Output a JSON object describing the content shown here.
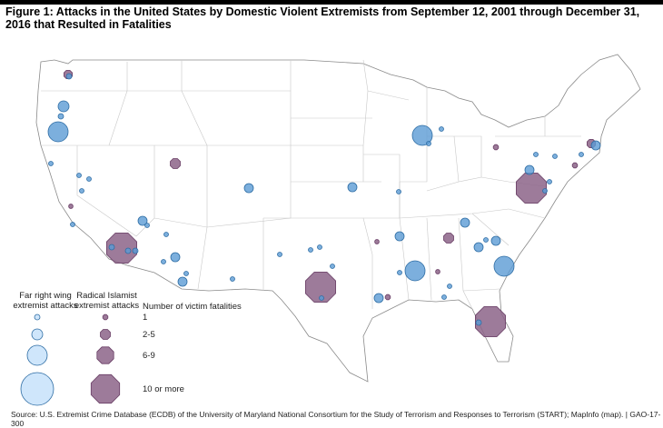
{
  "figure": {
    "title": "Figure 1: Attacks in the United States by Domestic Violent Extremists from September 12, 2001 through December 31, 2016 that Resulted in Fatalities",
    "source": "Source: U.S. Extremist Crime Database (ECDB) of the University of Maryland National Consortium for the Study of Terrorism and Responses to Terrorism (START); MapInfo (map).  |  GAO-17-300"
  },
  "legend": {
    "far_right_label": "Far right wing extremist attacks",
    "islamist_label": "Radical Islamist extremist attacks",
    "fatalities_label": "Number of victim fatalities",
    "categories": [
      "1",
      "2-5",
      "6-9",
      "10 or more"
    ]
  },
  "colors": {
    "far_right": "#5b9bd5",
    "far_right_legend": "#cfe6fb",
    "islamist": "#8c6488",
    "border": "#8a8a8a"
  }
}
